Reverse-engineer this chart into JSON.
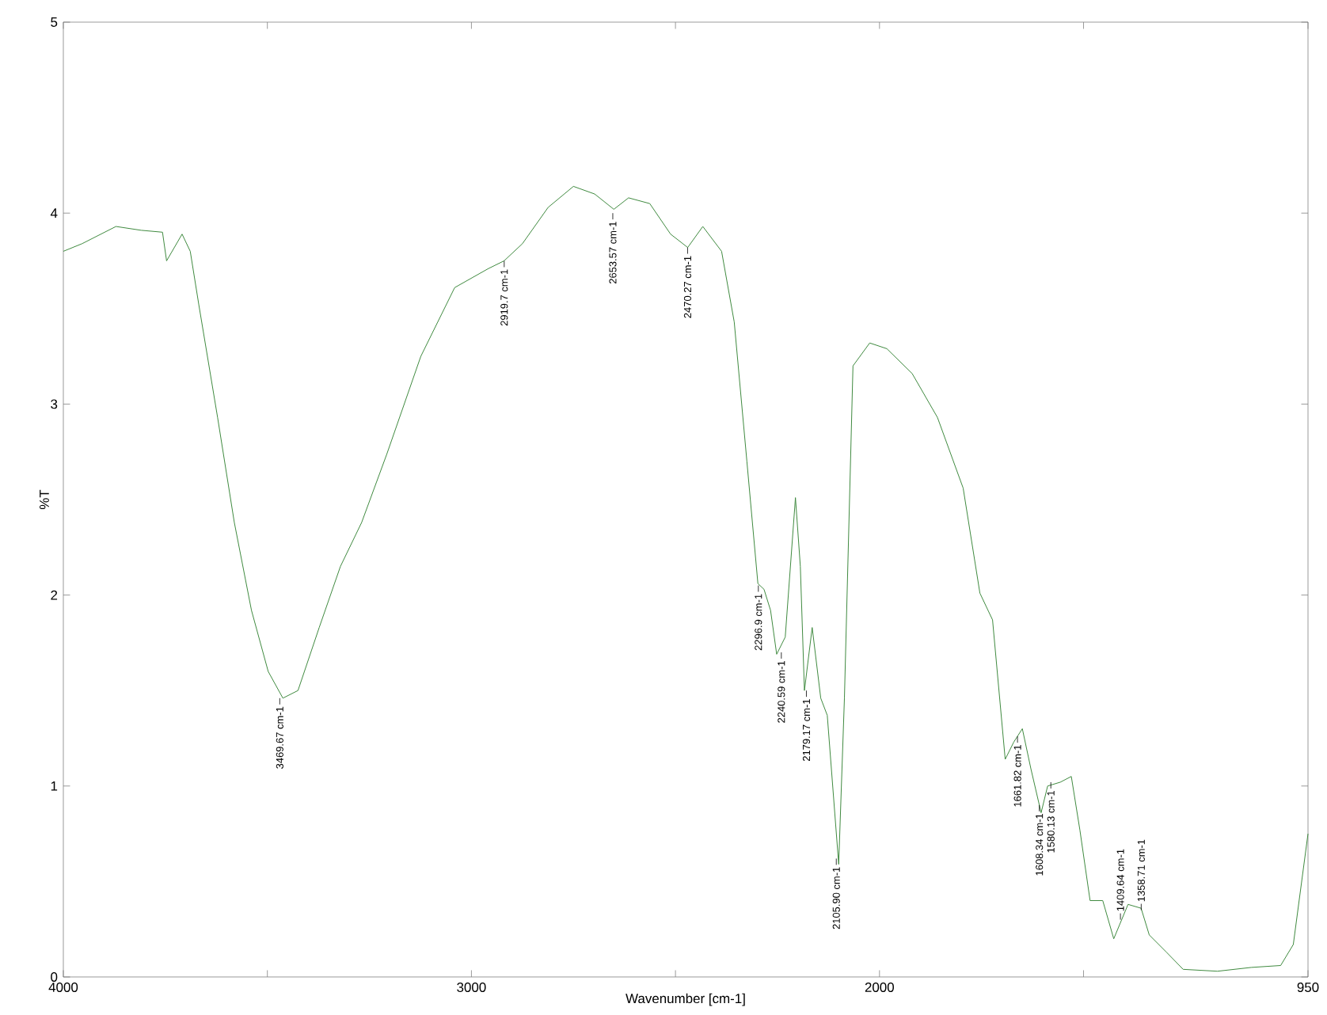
{
  "chart_data": {
    "type": "line",
    "xlabel": "Wavenumber [cm-1]",
    "ylabel": "%T",
    "xlim": [
      4000,
      950
    ],
    "ylim": [
      0,
      5
    ],
    "xticks": [
      4000,
      {
        "value": 3500,
        "label": null
      },
      3000,
      {
        "value": 2500,
        "label": null
      },
      2000,
      {
        "value": 1500,
        "label": null
      },
      950
    ],
    "yticks": [
      0,
      1,
      2,
      3,
      4,
      5
    ],
    "grid": false,
    "legend": false,
    "marker": "none",
    "line_style": "solid",
    "series": [
      {
        "color": "#3f8a3f",
        "x": [
          4000,
          3954,
          3871,
          3809,
          3757,
          3747,
          3709,
          3689,
          3668,
          3622,
          3581,
          3539,
          3498,
          3462,
          3425,
          3373,
          3321,
          3269,
          3207,
          3124,
          3041,
          2958,
          2920,
          2875,
          2812,
          2750,
          2698,
          2651,
          2615,
          2563,
          2512,
          2470,
          2433,
          2387,
          2356,
          2325,
          2298,
          2283,
          2267,
          2252,
          2231,
          2206,
          2194,
          2184,
          2165,
          2144,
          2128,
          2100,
          2086,
          2065,
          2024,
          1982,
          1920,
          1858,
          1795,
          1754,
          1723,
          1692,
          1671,
          1650,
          1629,
          1604,
          1588,
          1557,
          1530,
          1509,
          1484,
          1453,
          1426,
          1391,
          1359,
          1339,
          1297,
          1256,
          1172,
          1089,
          1017,
          986,
          950
        ],
        "values": [
          3.8,
          3.84,
          3.93,
          3.91,
          3.9,
          3.75,
          3.89,
          3.8,
          3.52,
          2.93,
          2.38,
          1.92,
          1.6,
          1.46,
          1.5,
          1.83,
          2.15,
          2.38,
          2.74,
          3.25,
          3.61,
          3.71,
          3.75,
          3.84,
          4.03,
          4.14,
          4.1,
          4.02,
          4.08,
          4.05,
          3.89,
          3.82,
          3.93,
          3.8,
          3.43,
          2.7,
          2.06,
          2.03,
          1.92,
          1.69,
          1.78,
          2.51,
          2.15,
          1.5,
          1.83,
          1.46,
          1.37,
          0.59,
          1.46,
          3.2,
          3.32,
          3.29,
          3.16,
          2.93,
          2.56,
          2.01,
          1.87,
          1.14,
          1.23,
          1.3,
          1.09,
          0.86,
          1.0,
          1.02,
          1.05,
          0.77,
          0.4,
          0.4,
          0.2,
          0.38,
          0.36,
          0.22,
          0.13,
          0.04,
          0.03,
          0.05,
          0.06,
          0.17,
          0.75
        ]
      }
    ],
    "annotations": [
      {
        "text": "3469.67 cm-1",
        "x": 3469.67,
        "y": 1.46
      },
      {
        "text": "2919.7 cm-1",
        "x": 2919.7,
        "y": 3.75
      },
      {
        "text": "2653.57 cm-1",
        "x": 2653.57,
        "y": 4.0
      },
      {
        "text": "2470.27 cm-1",
        "x": 2470.27,
        "y": 3.82
      },
      {
        "text": "2296.9 cm-1",
        "x": 2296.9,
        "y": 2.05
      },
      {
        "text": "2240.59 cm-1",
        "x": 2240.59,
        "y": 1.7
      },
      {
        "text": "2179.17 cm-1",
        "x": 2179.17,
        "y": 1.5
      },
      {
        "text": "2105.90 cm-1",
        "x": 2105.9,
        "y": 0.62
      },
      {
        "text": "1661.82 cm-1",
        "x": 1661.82,
        "y": 1.26
      },
      {
        "text": "1608.34 cm-1",
        "x": 1608.34,
        "y": 0.9
      },
      {
        "text": "1580.13 cm-1",
        "x": 1580.13,
        "y": 1.02
      },
      {
        "text": "1409.64 cm-1",
        "x": 1409.64,
        "y": 0.3
      },
      {
        "text": "1358.71 cm-1",
        "x": 1358.71,
        "y": 0.35
      }
    ]
  }
}
